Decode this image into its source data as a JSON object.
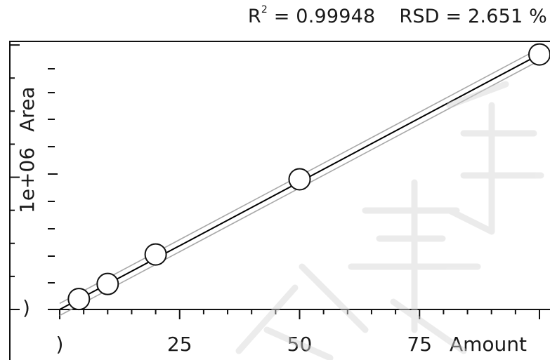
{
  "header": {
    "r2_label": "R",
    "r2_sup": "2",
    "r2_value": " = 0.99948",
    "rsd_text": "RSD = 2.651 %"
  },
  "chart_data": {
    "type": "scatter",
    "title": "",
    "xlabel": "Amount",
    "ylabel": "Area",
    "y_axis_text": "1e+06",
    "xlim": [
      0,
      100
    ],
    "ylim": [
      0,
      1950000
    ],
    "x_ticks": [
      0,
      25,
      50,
      75
    ],
    "x_tick_labels": [
      ")",
      "25",
      "50",
      "75"
    ],
    "y_tick_labels": [
      ")"
    ],
    "grid": false,
    "series": [
      {
        "points": [
          {
            "x": 4,
            "y": 78000
          },
          {
            "x": 10,
            "y": 190000
          },
          {
            "x": 20,
            "y": 410000
          },
          {
            "x": 50,
            "y": 970000
          },
          {
            "x": 100,
            "y": 1900000
          }
        ]
      }
    ],
    "fit_line": {
      "x": [
        0,
        100
      ],
      "y": [
        0,
        1900000
      ]
    },
    "confidence_band": {
      "upper": {
        "x": [
          0,
          100
        ],
        "y": [
          45000,
          1945000
        ]
      },
      "lower": {
        "x": [
          0,
          100
        ],
        "y": [
          -45000,
          1855000
        ]
      }
    }
  }
}
